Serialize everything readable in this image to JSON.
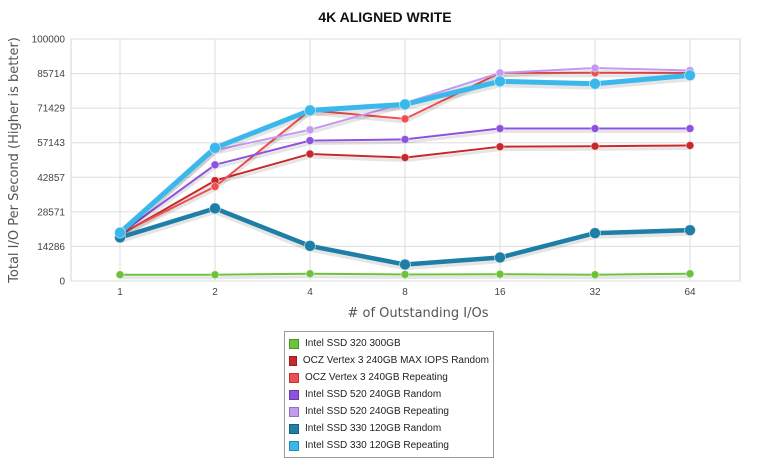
{
  "chart_data": {
    "type": "line",
    "title": "4K ALIGNED WRITE",
    "xlabel": "# of Outstanding I/Os",
    "ylabel": "Total I/O Per Second (Higher is better)",
    "categories": [
      "1",
      "2",
      "4",
      "8",
      "16",
      "32",
      "64"
    ],
    "ylim": [
      0,
      100000
    ],
    "yticks": [
      "0",
      "14286",
      "28571",
      "42857",
      "57143",
      "71429",
      "85714",
      "100000"
    ],
    "grid": true,
    "legend_position": "bottom",
    "series": [
      {
        "name": "Intel SSD 320 300GB",
        "color": "#6cc23a",
        "values": [
          2600,
          2600,
          3000,
          2700,
          2800,
          2600,
          3000
        ]
      },
      {
        "name": "OCZ Vertex 3 240GB MAX IOPS Random",
        "color": "#c8282a",
        "values": [
          19000,
          41500,
          52500,
          51000,
          55500,
          55700,
          56000
        ]
      },
      {
        "name": "OCZ Vertex 3 240GB Repeating",
        "color": "#ee4f4f",
        "values": [
          19500,
          39000,
          70500,
          67000,
          86000,
          86000,
          86000
        ]
      },
      {
        "name": "Intel SSD 520 240GB Random",
        "color": "#8e52e0",
        "values": [
          19500,
          48000,
          58000,
          58500,
          63000,
          63000,
          63000
        ]
      },
      {
        "name": "Intel SSD 520 240GB Repeating",
        "color": "#c39af0",
        "values": [
          20000,
          54000,
          62500,
          73500,
          86000,
          88000,
          87000
        ]
      },
      {
        "name": "Intel SSD 330 120GB Random",
        "color": "#1e7ea6",
        "values": [
          18000,
          30000,
          14500,
          6800,
          9700,
          19800,
          21000
        ]
      },
      {
        "name": "Intel SSD 330 120GB Repeating",
        "color": "#3ab8ec",
        "values": [
          20000,
          55000,
          70500,
          73000,
          82500,
          81500,
          85000
        ]
      }
    ]
  }
}
